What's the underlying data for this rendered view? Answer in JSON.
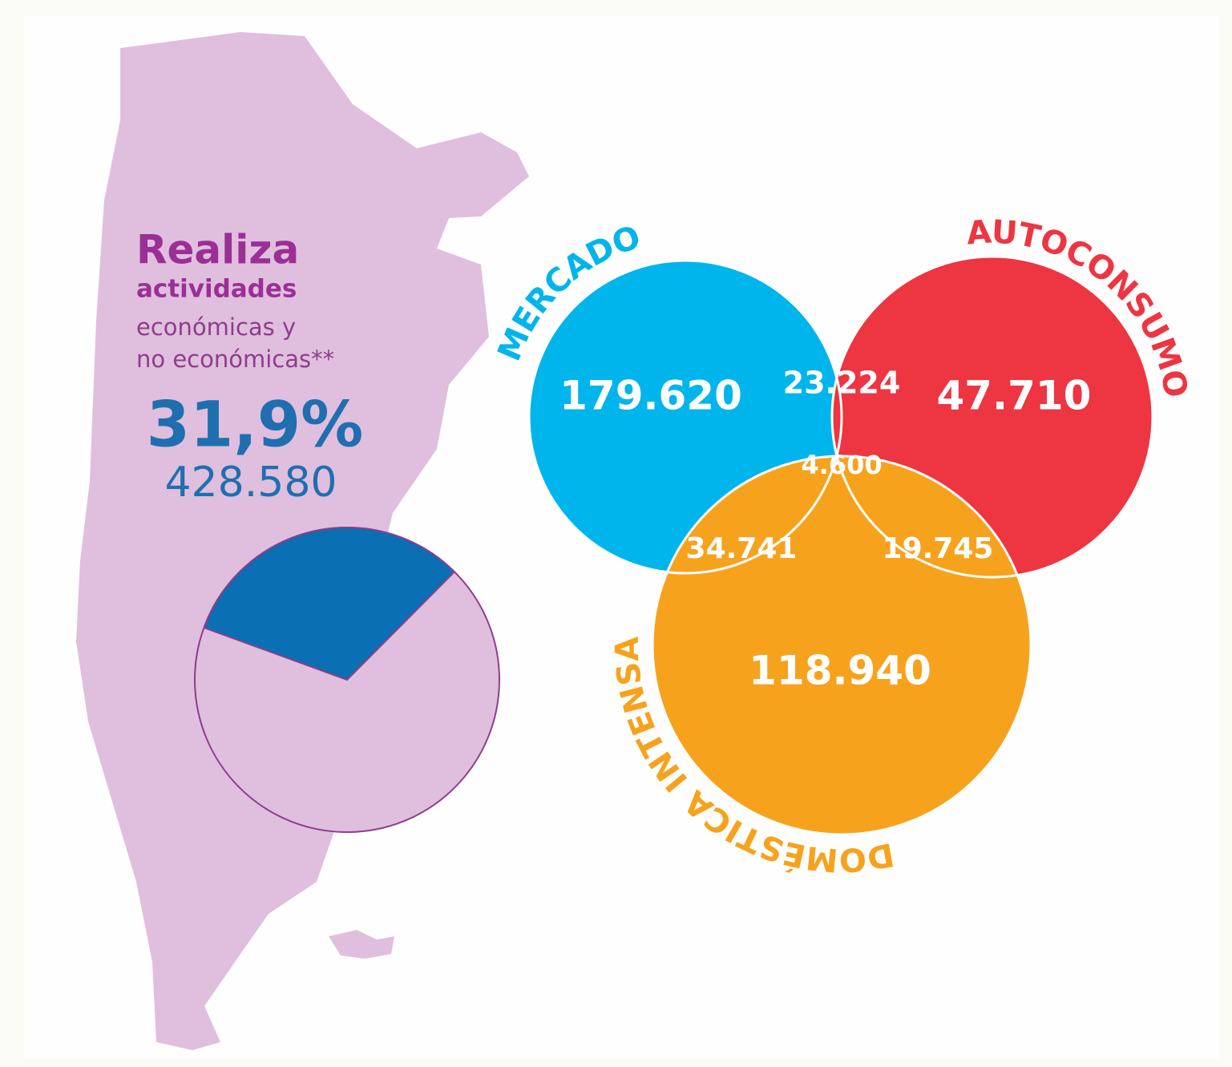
{
  "header": {
    "lines": [
      "Realiza",
      "actividades",
      "económicas y",
      "no económicas**"
    ]
  },
  "chart_data": [
    {
      "type": "pie",
      "values": [
        31.9
      ],
      "value_labels": [
        "31,9%"
      ],
      "colors": [
        "#0a6fb3"
      ],
      "total_label": "428.580",
      "total": 428580
    },
    {
      "type": "venn",
      "sets": [
        {
          "name": "MERCADO",
          "color": "#00b5eb"
        },
        {
          "name": "AUTOCONSUMO",
          "color": "#ee3542"
        },
        {
          "name": "DOMÉSTICA INTENSA",
          "color": "#f7a21d"
        }
      ],
      "regions": [
        {
          "sets": [
            0
          ],
          "value": 179620,
          "label": "179.620"
        },
        {
          "sets": [
            0,
            1
          ],
          "value": 23224,
          "label": "23.224",
          "color": "#8e2a8c"
        },
        {
          "sets": [
            1
          ],
          "value": 47710,
          "label": "47.710"
        },
        {
          "sets": [
            0,
            1,
            2
          ],
          "value": 4600,
          "label": "4.600",
          "color": "#4c3191"
        },
        {
          "sets": [
            0,
            2
          ],
          "value": 34741,
          "label": "34.741",
          "color": "#00a96b"
        },
        {
          "sets": [
            1,
            2
          ],
          "value": 19745,
          "label": "19.745",
          "color": "#ef5724"
        },
        {
          "sets": [
            2
          ],
          "value": 118940,
          "label": "118.940"
        }
      ]
    }
  ]
}
